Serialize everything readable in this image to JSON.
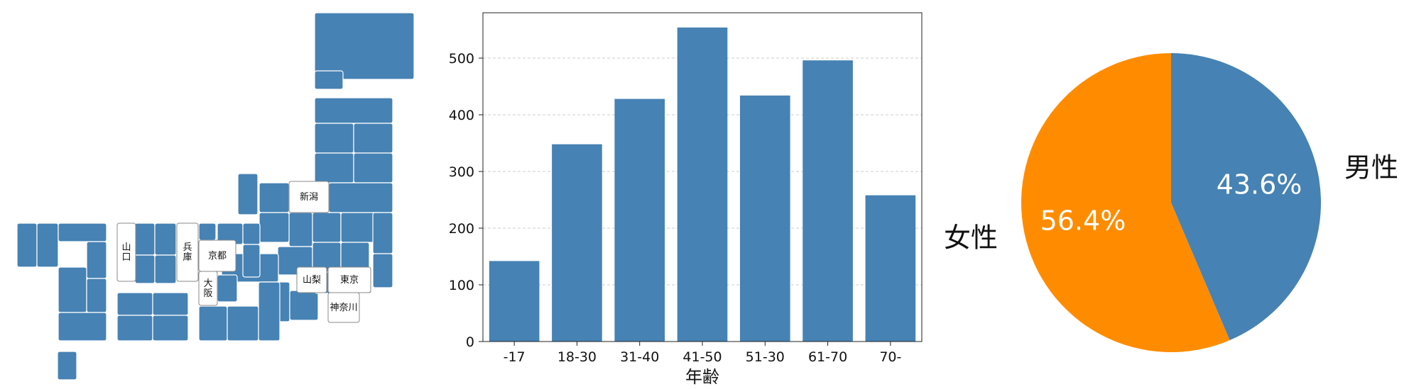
{
  "colors": {
    "primary": "#4682b4",
    "secondary": "#ff8c00",
    "highlight_fill": "#ffffff",
    "grid": "#cccccc"
  },
  "map": {
    "highlighted_prefectures": [
      {
        "name": "新潟",
        "vertical": false
      },
      {
        "name": "山口",
        "vertical": true
      },
      {
        "name": "兵庫",
        "vertical": true
      },
      {
        "name": "京都",
        "vertical": false
      },
      {
        "name": "大阪",
        "vertical": true
      },
      {
        "name": "山梨",
        "vertical": false
      },
      {
        "name": "東京",
        "vertical": false
      },
      {
        "name": "神奈川",
        "vertical": false
      }
    ]
  },
  "chart_data": [
    {
      "type": "bar",
      "categories": [
        "-17",
        "18-30",
        "31-40",
        "41-50",
        "51-30",
        "61-70",
        "70-"
      ],
      "values": [
        142,
        348,
        428,
        554,
        434,
        496,
        258
      ],
      "title": "",
      "xlabel": "年齢",
      "ylabel": "",
      "ylim": [
        0,
        580
      ],
      "yticks": [
        0,
        100,
        200,
        300,
        400,
        500
      ],
      "grid": "y-dashed",
      "color": "#4682b4"
    },
    {
      "type": "pie",
      "labels": [
        "男性",
        "女性"
      ],
      "values": [
        43.6,
        56.4
      ],
      "value_labels": [
        "43.6%",
        "56.4%"
      ],
      "colors": [
        "#4682b4",
        "#ff8c00"
      ],
      "start": "top",
      "direction": "clockwise"
    }
  ]
}
